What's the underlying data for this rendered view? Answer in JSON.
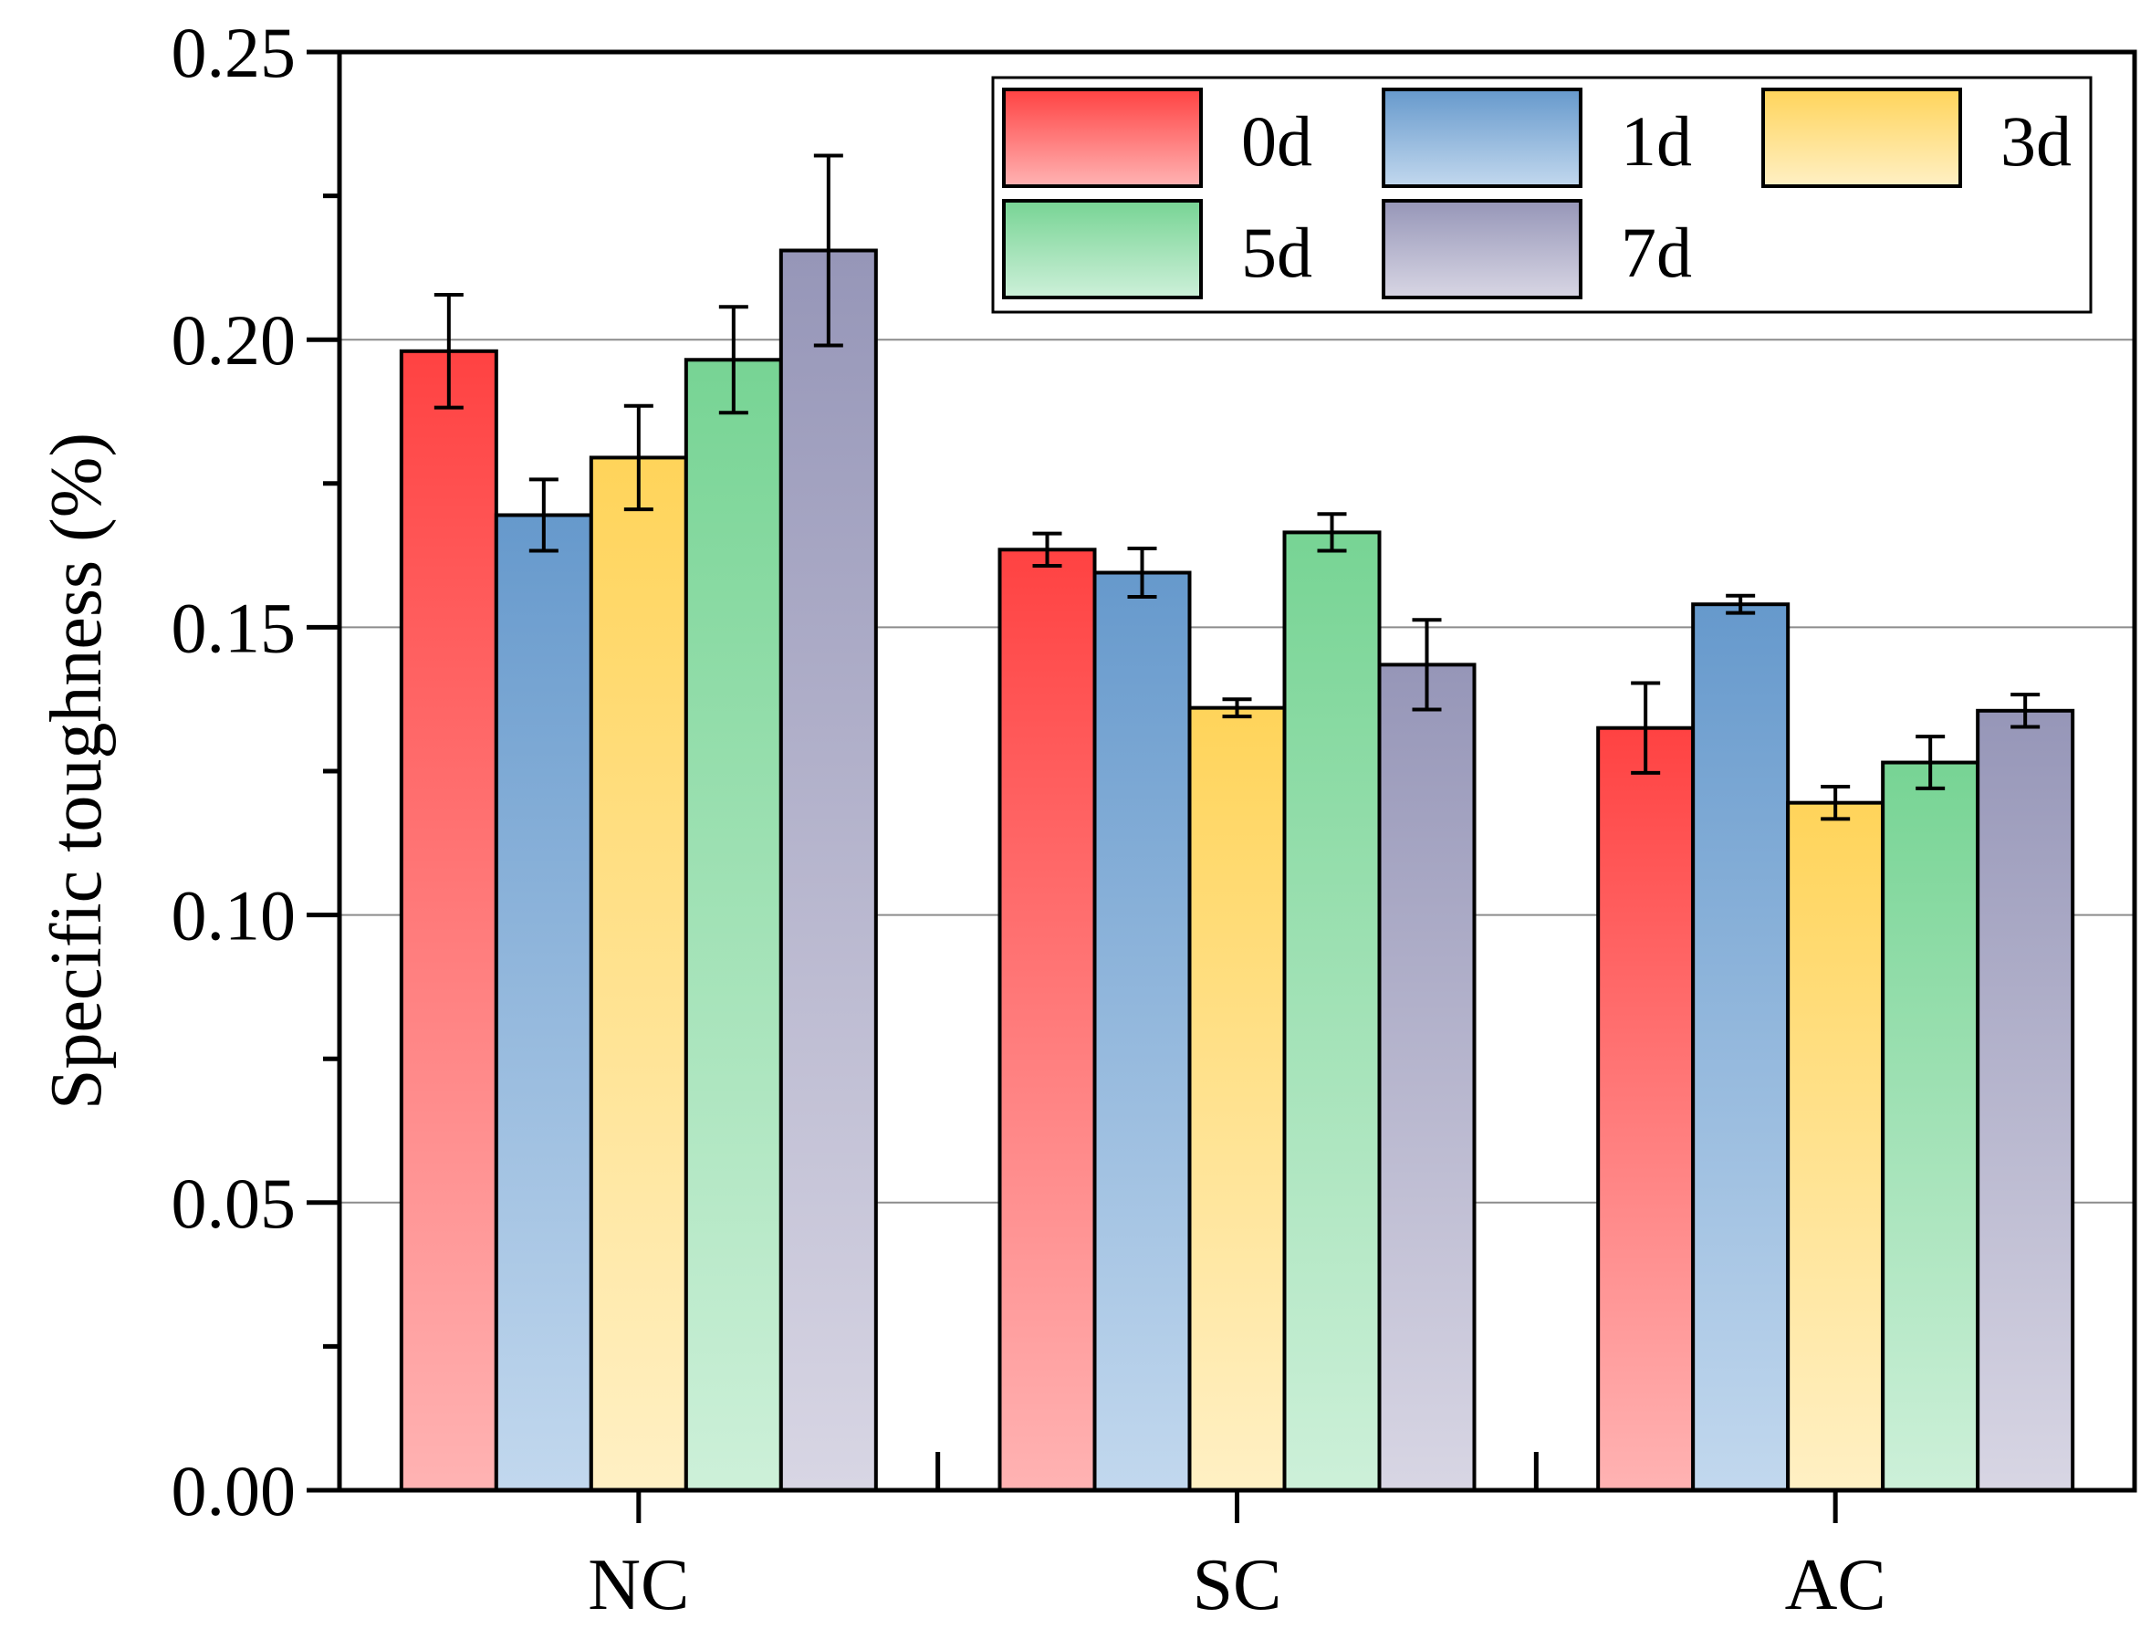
{
  "chart_data": {
    "type": "bar",
    "title": "",
    "xlabel": "",
    "ylabel": "Specific toughness (%)",
    "ylim": [
      0,
      0.25
    ],
    "yticks": [
      "0.00",
      "0.05",
      "0.10",
      "0.15",
      "0.20",
      "0.25"
    ],
    "grid": true,
    "legend_position": "top-right",
    "categories": [
      "NC",
      "SC",
      "AC"
    ],
    "series": [
      {
        "name": "0d",
        "values": [
          0.198,
          0.1635,
          0.1325
        ],
        "errors": [
          0.0098,
          0.0028,
          0.0078
        ],
        "color": "#ff4242",
        "color_light": "#ffb3b3"
      },
      {
        "name": "1d",
        "values": [
          0.1695,
          0.1595,
          0.154
        ],
        "errors": [
          0.0062,
          0.0042,
          0.0015
        ],
        "color": "#6699cc",
        "color_light": "#c2d8ee"
      },
      {
        "name": "3d",
        "values": [
          0.1795,
          0.136,
          0.1195
        ],
        "errors": [
          0.009,
          0.0015,
          0.0028
        ],
        "color": "#ffd45a",
        "color_light": "#fff0c4"
      },
      {
        "name": "5d",
        "values": [
          0.1965,
          0.1665,
          0.1265
        ],
        "errors": [
          0.0092,
          0.0032,
          0.0045
        ],
        "color": "#77d494",
        "color_light": "#cdf0d9"
      },
      {
        "name": "7d",
        "values": [
          0.2155,
          0.1435,
          0.1355
        ],
        "errors": [
          0.0165,
          0.0078,
          0.0028
        ],
        "color": "#9696b8",
        "color_light": "#d8d6e4"
      }
    ]
  }
}
